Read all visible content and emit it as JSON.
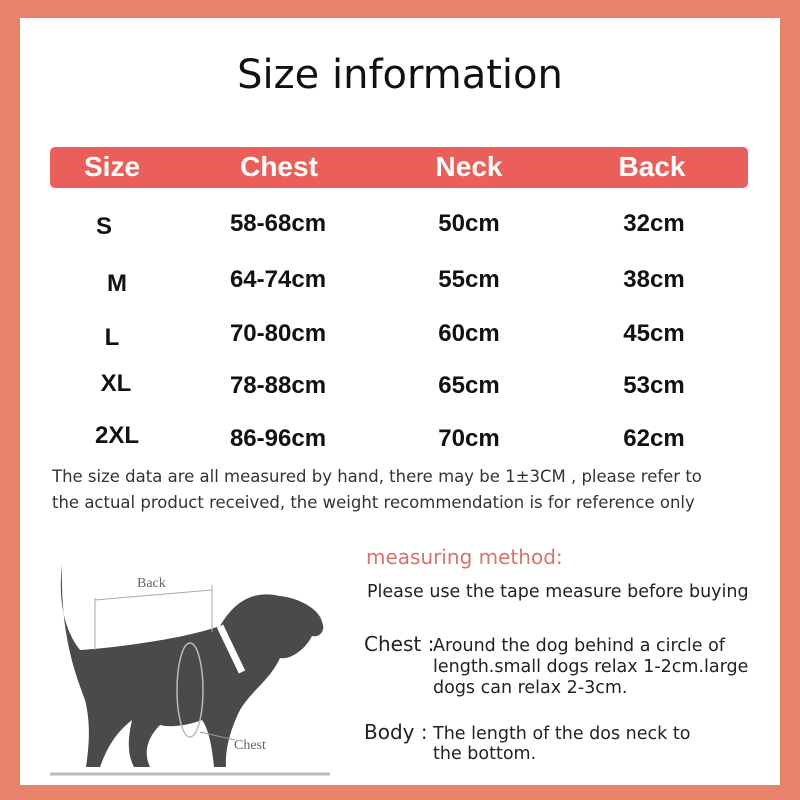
{
  "title": "Size information",
  "table": {
    "headers": [
      "Size",
      "Chest",
      "Neck",
      "Back"
    ],
    "rows": [
      [
        "S",
        "58-68cm",
        "50cm",
        "32cm"
      ],
      [
        "M",
        "64-74cm",
        "55cm",
        "38cm"
      ],
      [
        "L",
        "70-80cm",
        "60cm",
        "45cm"
      ],
      [
        "XL",
        "78-88cm",
        "65cm",
        "53cm"
      ],
      [
        "2XL",
        "86-96cm",
        "70cm",
        "62cm"
      ]
    ]
  },
  "note": [
    "The size data are all measured by hand, there may be 1±3CM , please refer to",
    "the actual product received, the weight recommendation is for reference only"
  ],
  "method": {
    "heading": "measuring method:",
    "intro": "Please use the tape measure before buying",
    "chest_label": "Chest :",
    "chest_text": [
      "Around the dog behind a circle of",
      "length.small dogs relax 1-2cm.large",
      "dogs can relax 2-3cm."
    ],
    "body_label": "Body :",
    "body_text": [
      "The length of the dos neck to",
      "the bottom."
    ]
  },
  "diagram": {
    "back_label": "Back",
    "chest_label": "Chest"
  },
  "colors": {
    "border": "#e8836a",
    "header": "#ea5f5a",
    "heading": "#d9716b"
  }
}
